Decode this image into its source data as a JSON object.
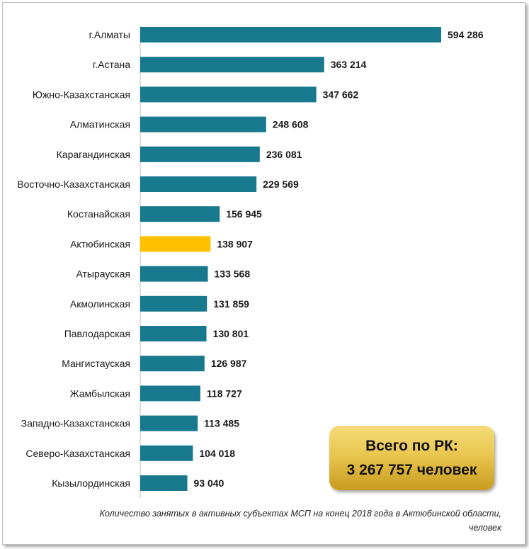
{
  "chart_data": {
    "type": "bar",
    "orientation": "horizontal",
    "categories": [
      "г.Алматы",
      "г.Астана",
      "Южно-Казахстанская",
      "Алматинская",
      "Карагандинская",
      "Восточно-Казахстанская",
      "Костанайская",
      "Актюбинская",
      "Атырауская",
      "Акмолинская",
      "Павлодарская",
      "Мангистауская",
      "Жамбылская",
      "Западно-Казахстанская",
      "Северо-Казахстанская",
      "Кызылординская"
    ],
    "values": [
      594286,
      363214,
      347662,
      248608,
      236081,
      229569,
      156945,
      138907,
      133568,
      131859,
      130801,
      126987,
      118727,
      113485,
      104018,
      93040
    ],
    "value_labels": [
      "594 286",
      "363 214",
      "347 662",
      "248 608",
      "236 081",
      "229 569",
      "156 945",
      "138 907",
      "133 568",
      "131 859",
      "130 801",
      "126 987",
      "118 727",
      "113 485",
      "104 018",
      "93 040"
    ],
    "highlight_index": 7,
    "colors": {
      "bar": "#17788e",
      "highlight": "#ffc000"
    },
    "xlim": [
      0,
      594286
    ],
    "grid": false,
    "legend": "none"
  },
  "total": {
    "line1": "Всего по РК:",
    "line2": "3 267 757 человек"
  },
  "caption": {
    "line1": "Количество занятых в активных субъектах МСП на конец 2018 года в Актюбинской области,",
    "line2": "человек"
  }
}
